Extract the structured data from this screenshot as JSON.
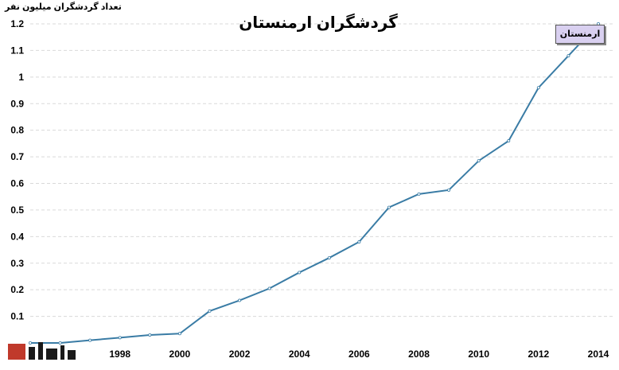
{
  "chart_data": {
    "type": "line",
    "title": "گردشگران ارمنستان",
    "ylabel": "تعداد گردشگران میلیون نفر",
    "xlabel": "",
    "x": [
      1995,
      1996,
      1997,
      1998,
      1999,
      2000,
      2001,
      2002,
      2003,
      2004,
      2005,
      2006,
      2007,
      2008,
      2009,
      2010,
      2011,
      2012,
      2013,
      2014
    ],
    "xticks": [
      "1998",
      "2000",
      "2002",
      "2004",
      "2006",
      "2008",
      "2010",
      "2012",
      "2014"
    ],
    "series": [
      {
        "name": "ارمنستان",
        "color": "#3a7ca5",
        "values": [
          0.0,
          0.0,
          0.01,
          0.02,
          0.03,
          0.035,
          0.12,
          0.16,
          0.205,
          0.265,
          0.32,
          0.38,
          0.51,
          0.56,
          0.575,
          0.685,
          0.76,
          0.96,
          1.08,
          1.2
        ]
      }
    ],
    "ylim": [
      0,
      1.2
    ],
    "yticks": [
      "0.1",
      "0.2",
      "0.3",
      "0.4",
      "0.5",
      "0.6",
      "0.7",
      "0.8",
      "0.9",
      "1",
      "1.1",
      "1.2"
    ],
    "grid": true,
    "legend": "top-right"
  },
  "watermark": {
    "icon": "news-logo-icon",
    "colors": [
      "#c0392b",
      "#1a1a1a"
    ]
  }
}
